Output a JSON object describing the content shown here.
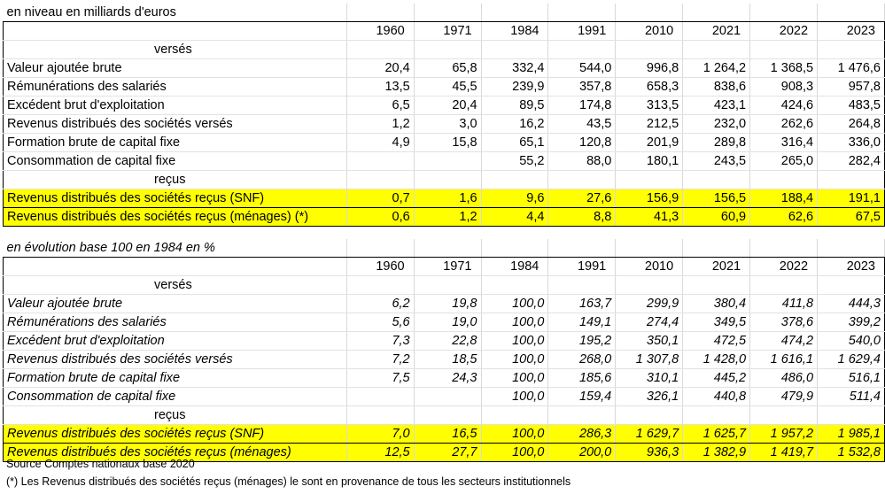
{
  "table1": {
    "title": "en niveau en milliards d'euros",
    "years": [
      "1960",
      "1971",
      "1984",
      "1991",
      "2010",
      "2021",
      "2022",
      "2023"
    ],
    "section_verses": "versés",
    "section_recus": "reçus",
    "rows_verses": [
      {
        "label": "Valeur ajoutée brute",
        "values": [
          "20,4",
          "65,8",
          "332,4",
          "544,0",
          "996,8",
          "1 264,2",
          "1 368,5",
          "1 476,6"
        ]
      },
      {
        "label": "Rémunérations des salariés",
        "values": [
          "13,5",
          "45,5",
          "239,9",
          "357,8",
          "658,3",
          "838,6",
          "908,3",
          "957,8"
        ]
      },
      {
        "label": "Excédent brut d'exploitation",
        "values": [
          "6,5",
          "20,4",
          "89,5",
          "174,8",
          "313,5",
          "423,1",
          "424,6",
          "483,5"
        ]
      },
      {
        "label": "Revenus distribués des sociétés versés",
        "values": [
          "1,2",
          "3,0",
          "16,2",
          "43,5",
          "212,5",
          "232,0",
          "262,6",
          "264,8"
        ]
      },
      {
        "label": "Formation brute de capital fixe",
        "values": [
          "4,9",
          "15,8",
          "65,1",
          "120,8",
          "201,9",
          "289,8",
          "316,4",
          "336,0"
        ]
      },
      {
        "label": "Consommation de capital fixe",
        "values": [
          "",
          "",
          "55,2",
          "88,0",
          "180,1",
          "243,5",
          "265,0",
          "282,4"
        ]
      }
    ],
    "rows_recus": [
      {
        "label": "Revenus distribués des sociétés reçus (SNF)",
        "values": [
          "0,7",
          "1,6",
          "9,6",
          "27,6",
          "156,9",
          "156,5",
          "188,4",
          "191,1"
        ]
      },
      {
        "label": "Revenus distribués des sociétés reçus (ménages) (*)",
        "values": [
          "0,6",
          "1,2",
          "4,4",
          "8,8",
          "41,3",
          "60,9",
          "62,6",
          "67,5"
        ]
      }
    ]
  },
  "table2": {
    "title": "en évolution base 100 en 1984 en %",
    "years": [
      "1960",
      "1971",
      "1984",
      "1991",
      "2010",
      "2021",
      "2022",
      "2023"
    ],
    "section_verses": "versés",
    "section_recus": "reçus",
    "rows_verses": [
      {
        "label": "Valeur ajoutée brute",
        "values": [
          "6,2",
          "19,8",
          "100,0",
          "163,7",
          "299,9",
          "380,4",
          "411,8",
          "444,3"
        ]
      },
      {
        "label": "Rémunérations des salariés",
        "values": [
          "5,6",
          "19,0",
          "100,0",
          "149,1",
          "274,4",
          "349,5",
          "378,6",
          "399,2"
        ]
      },
      {
        "label": "Excédent brut d'exploitation",
        "values": [
          "7,3",
          "22,8",
          "100,0",
          "195,2",
          "350,1",
          "472,5",
          "474,2",
          "540,0"
        ]
      },
      {
        "label": "Revenus distribués des sociétés versés",
        "values": [
          "7,2",
          "18,5",
          "100,0",
          "268,0",
          "1 307,8",
          "1 428,0",
          "1 616,1",
          "1 629,4"
        ]
      },
      {
        "label": "Formation brute de capital fixe",
        "values": [
          "7,5",
          "24,3",
          "100,0",
          "185,6",
          "310,1",
          "445,2",
          "486,0",
          "516,1"
        ]
      },
      {
        "label": "Consommation de capital fixe",
        "values": [
          "",
          "",
          "100,0",
          "159,4",
          "326,1",
          "440,8",
          "479,9",
          "511,4"
        ]
      }
    ],
    "rows_recus": [
      {
        "label": "Revenus distribués des sociétés reçus (SNF)",
        "values": [
          "7,0",
          "16,5",
          "100,0",
          "286,3",
          "1 629,7",
          "1 625,7",
          "1 957,2",
          "1 985,1"
        ]
      },
      {
        "label": "Revenus distribués des sociétés reçus (ménages)",
        "values": [
          "12,5",
          "27,7",
          "100,0",
          "200,0",
          "936,3",
          "1 382,9",
          "1 419,7",
          "1 532,8"
        ]
      }
    ]
  },
  "footer": {
    "source": "Source Comptes nationaux base 2020",
    "note": "(*) Les Revenus distribués des sociétés reçus (ménages) le sont en provenance de tous les secteurs institutionnels"
  },
  "colors": {
    "highlight": "#ffff00",
    "grid": "#d9d9d9",
    "border": "#000000"
  }
}
